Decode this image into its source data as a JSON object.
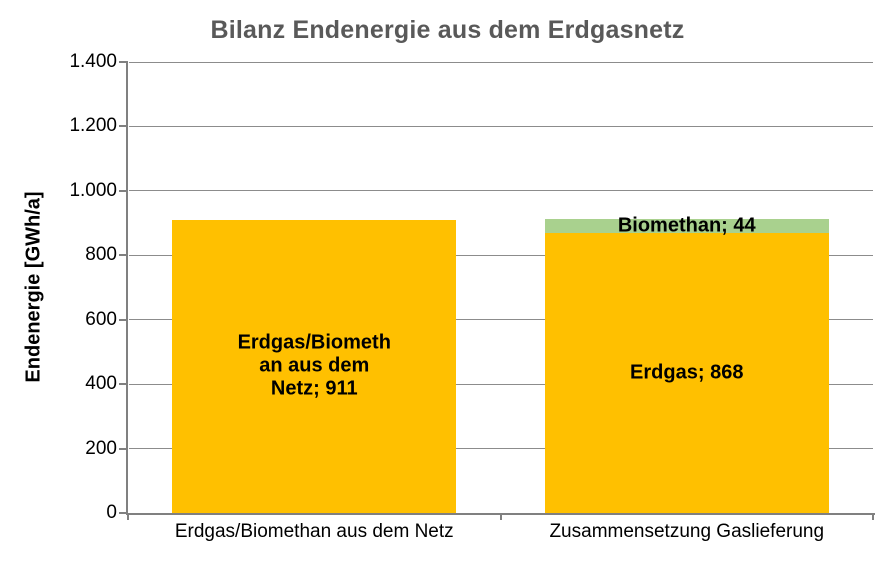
{
  "chart_data": {
    "type": "bar",
    "stacked": true,
    "title": "Bilanz Endenergie aus dem Erdgasnetz",
    "ylabel": "Endenergie [GWh/a]",
    "xlabel": "",
    "ylim": [
      0,
      1400
    ],
    "grid": true,
    "legend": false,
    "yticks": [
      {
        "value": 0,
        "label": "0"
      },
      {
        "value": 200,
        "label": "200"
      },
      {
        "value": 400,
        "label": "400"
      },
      {
        "value": 600,
        "label": "600"
      },
      {
        "value": 800,
        "label": "800"
      },
      {
        "value": 1000,
        "label": "1.000"
      },
      {
        "value": 1200,
        "label": "1.200"
      },
      {
        "value": 1400,
        "label": "1.400"
      }
    ],
    "categories": [
      "Erdgas/Biomethan aus dem Netz",
      "Zusammensetzung Gaslieferung"
    ],
    "bars": [
      {
        "category": "Erdgas/Biomethan aus dem Netz",
        "total": 911,
        "segments": [
          {
            "name": "Erdgas/Biomethan aus dem Netz",
            "value": 911,
            "color": "#FFC000",
            "label_lines": [
              "Erdgas/Biometh",
              "an aus dem",
              "Netz; 911"
            ]
          }
        ]
      },
      {
        "category": "Zusammensetzung Gaslieferung",
        "total": 912,
        "segments": [
          {
            "name": "Erdgas",
            "value": 868,
            "color": "#FFC000",
            "label_lines": [
              "Erdgas; 868"
            ]
          },
          {
            "name": "Biomethan",
            "value": 44,
            "color": "#A9D18E",
            "label_lines": [
              "Biomethan; 44"
            ]
          }
        ]
      }
    ],
    "colors": {
      "bar_yellow": "#FFC000",
      "bar_green": "#A9D18E",
      "title_text": "#595959",
      "axis_line": "#808080",
      "gridline": "#8C8C8C",
      "label_text": "#000000"
    }
  }
}
